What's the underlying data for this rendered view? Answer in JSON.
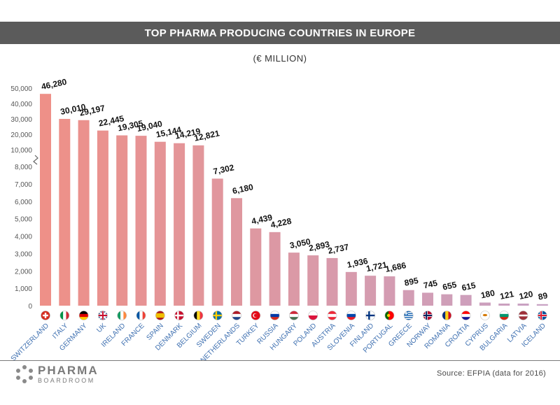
{
  "header": {
    "title": "TOP PHARMA PRODUCING COUNTRIES IN EUROPE"
  },
  "subtitle": "(€ MILLION)",
  "footer": {
    "logo_top": "PHARMA",
    "logo_bottom": "BOARDROOM",
    "source": "Source: EFPIA (data for 2016)"
  },
  "colors": {
    "bar_start": "#ee9088",
    "bar_end": "#c8a2c4",
    "value_text": "#111111",
    "tick_text": "#555555",
    "category_text": "#3d6fb0"
  },
  "chart_data": {
    "type": "bar",
    "title": "TOP PHARMA PRODUCING COUNTRIES IN EUROPE",
    "subtitle": "(€ MILLION)",
    "axis_break": true,
    "ylim_lower": [
      0,
      8000
    ],
    "ylim_upper": [
      10000,
      50000
    ],
    "yticks_lower": [
      "0",
      "1,000",
      "2,000",
      "3,000",
      "4,000",
      "5,000",
      "6,000",
      "7,000",
      "8,000"
    ],
    "yticks_upper": [
      "10,000",
      "20,000",
      "30,000",
      "40,000",
      "50,000"
    ],
    "grid": false,
    "categories": [
      "SWITZERLAND",
      "ITALY",
      "GERMANY",
      "UK",
      "IRELAND",
      "FRANCE",
      "SPAIN",
      "DENMARK",
      "BELGIUM",
      "SWEDEN",
      "NETHERLANDS",
      "TURKEY",
      "RUSSIA",
      "HUNGARY",
      "POLAND",
      "AUSTRIA",
      "SLOVENIA",
      "FINLAND",
      "PORTUGAL",
      "GREECE",
      "NORWAY",
      "ROMANIA",
      "CROATIA",
      "CYPRUS",
      "BULGARIA",
      "LATVIA",
      "ICELAND"
    ],
    "values": [
      46280,
      30010,
      29197,
      22445,
      19305,
      19040,
      15144,
      14219,
      12821,
      7302,
      6180,
      4439,
      4228,
      3050,
      2893,
      2737,
      1936,
      1721,
      1686,
      895,
      745,
      655,
      615,
      180,
      121,
      120,
      89
    ],
    "labels": [
      "46,280",
      "30,010",
      "29,197",
      "22,445",
      "19,305",
      "19,040",
      "15,144",
      "14,219",
      "12,821",
      "7,302",
      "6,180",
      "4,439",
      "4,228",
      "3,050",
      "2,893",
      "2,737",
      "1,936",
      "1,721",
      "1,686",
      "895",
      "745",
      "655",
      "615",
      "180",
      "121",
      "120",
      "89"
    ],
    "flags": [
      {
        "type": "cross",
        "colors": [
          "#d52b1e",
          "#ffffff"
        ]
      },
      {
        "type": "v",
        "colors": [
          "#009246",
          "#ffffff",
          "#ce2b37"
        ]
      },
      {
        "type": "h",
        "colors": [
          "#000000",
          "#dd0000",
          "#ffce00"
        ]
      },
      {
        "type": "uk",
        "colors": [
          "#012169",
          "#ffffff",
          "#c8102e"
        ]
      },
      {
        "type": "v",
        "colors": [
          "#169b62",
          "#ffffff",
          "#ff883e"
        ]
      },
      {
        "type": "v",
        "colors": [
          "#0055a4",
          "#ffffff",
          "#ef4135"
        ]
      },
      {
        "type": "spain",
        "colors": [
          "#aa151b",
          "#f1bf00"
        ]
      },
      {
        "type": "nordic",
        "colors": [
          "#c8102e",
          "#ffffff"
        ]
      },
      {
        "type": "v",
        "colors": [
          "#000000",
          "#fdda24",
          "#ef3340"
        ]
      },
      {
        "type": "nordic",
        "colors": [
          "#006aa7",
          "#fecc00"
        ]
      },
      {
        "type": "h",
        "colors": [
          "#ae1c28",
          "#ffffff",
          "#21468b"
        ]
      },
      {
        "type": "crescent",
        "colors": [
          "#e30a17",
          "#ffffff"
        ]
      },
      {
        "type": "h",
        "colors": [
          "#ffffff",
          "#0039a6",
          "#d52b1e"
        ]
      },
      {
        "type": "h",
        "colors": [
          "#ce2939",
          "#ffffff",
          "#477050"
        ]
      },
      {
        "type": "h2",
        "colors": [
          "#ffffff",
          "#dc143c"
        ]
      },
      {
        "type": "h",
        "colors": [
          "#ed2939",
          "#ffffff",
          "#ed2939"
        ]
      },
      {
        "type": "h",
        "colors": [
          "#ffffff",
          "#0047ab",
          "#ed1c24"
        ]
      },
      {
        "type": "nordic",
        "colors": [
          "#ffffff",
          "#003580"
        ]
      },
      {
        "type": "portugal",
        "colors": [
          "#006600",
          "#ff0000"
        ]
      },
      {
        "type": "stripes",
        "colors": [
          "#0d5eaf",
          "#ffffff"
        ]
      },
      {
        "type": "nordic2",
        "colors": [
          "#ba0c2f",
          "#ffffff",
          "#00205b"
        ]
      },
      {
        "type": "v",
        "colors": [
          "#002b7f",
          "#fcd116",
          "#ce1126"
        ]
      },
      {
        "type": "h",
        "colors": [
          "#ff0000",
          "#ffffff",
          "#171796"
        ]
      },
      {
        "type": "cyprus",
        "colors": [
          "#ffffff",
          "#d57800"
        ]
      },
      {
        "type": "h",
        "colors": [
          "#ffffff",
          "#00966e",
          "#d62612"
        ]
      },
      {
        "type": "latvia",
        "colors": [
          "#9e3039",
          "#ffffff"
        ]
      },
      {
        "type": "nordic2",
        "colors": [
          "#02529c",
          "#ffffff",
          "#dc1e35"
        ]
      }
    ]
  }
}
